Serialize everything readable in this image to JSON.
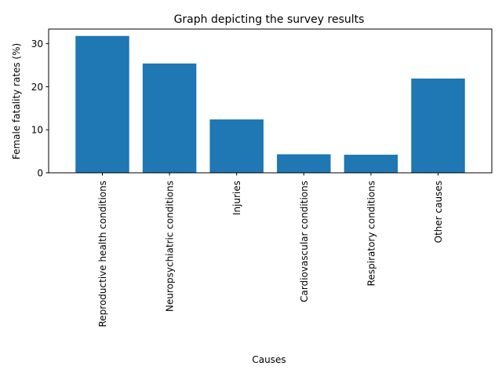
{
  "chart_data": {
    "type": "bar",
    "title": "Graph depicting the survey results",
    "xlabel": "Causes",
    "ylabel": "Female fatality rates (%)",
    "categories": [
      "Reproductive health conditions",
      "Neuropsychiatric conditions",
      "Injuries",
      "Cardiovascular conditions",
      "Respiratory conditions",
      "Other causes"
    ],
    "values": [
      31.8,
      25.4,
      12.4,
      4.3,
      4.2,
      21.9
    ],
    "ylim": [
      0,
      33.4
    ],
    "yticks": [
      0,
      10,
      20,
      30
    ],
    "bar_color": "#1f77b4",
    "grid": false,
    "legend": "none"
  }
}
